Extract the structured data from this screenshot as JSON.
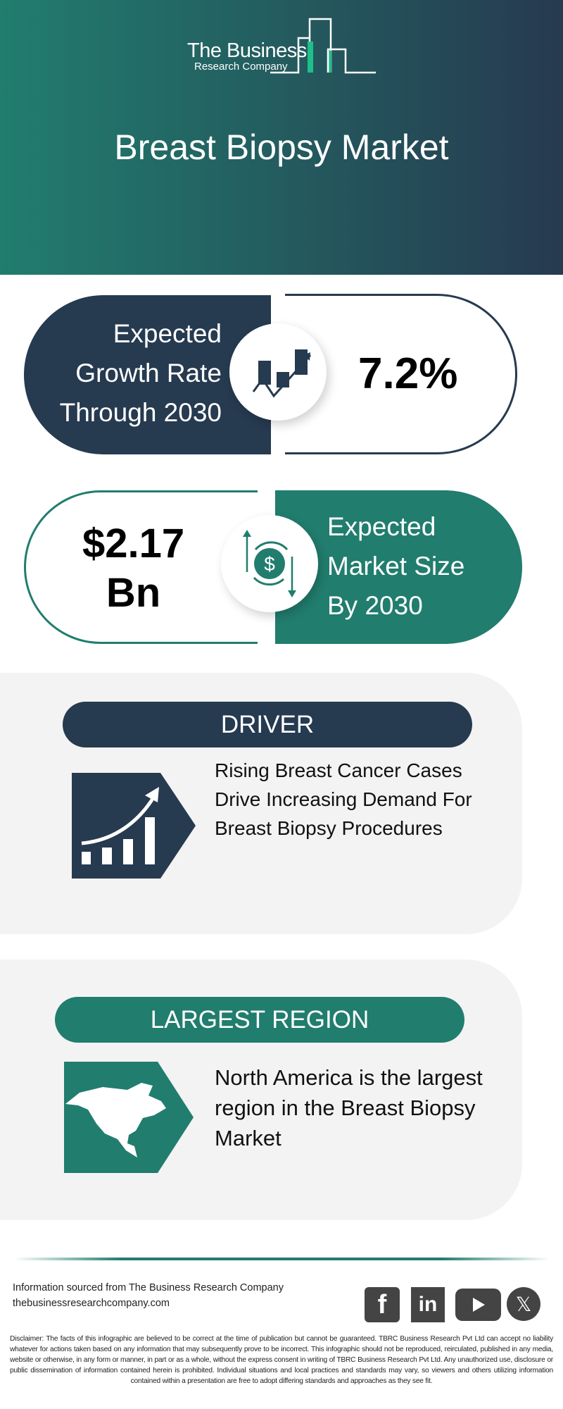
{
  "header": {
    "logo_line1": "The Business",
    "logo_line2": "Research Company",
    "title": "Breast Biopsy Market"
  },
  "growth": {
    "label_lines": [
      "Expected",
      "Growth Rate",
      "Through 2030"
    ],
    "value": "7.2%",
    "icon": "growth-chart-icon"
  },
  "market": {
    "value_line1": "$2.17",
    "value_line2": "Bn",
    "label_lines": [
      "Expected",
      "Market Size",
      "By 2030"
    ],
    "icon": "dollar-cycle-icon"
  },
  "driver": {
    "heading": "DRIVER",
    "text_lines": [
      "Rising Breast Cancer Cases",
      "Drive Increasing Demand For",
      "Breast Biopsy Procedures"
    ],
    "icon": "rising-bar-chart-icon"
  },
  "region": {
    "heading": "LARGEST REGION",
    "text_lines": [
      "North America is the largest",
      "region in the Breast Biopsy",
      "Market"
    ],
    "icon": "north-america-map-icon"
  },
  "footer": {
    "source": "Information sourced from The Business Research Company",
    "website": "thebusinessresearchcompany.com",
    "social": [
      "facebook",
      "linkedin",
      "youtube",
      "x"
    ],
    "disclaimer": "Disclaimer: The facts of this infographic are believed to be correct at the time of publication but cannot be guaranteed. TBRC Business Research Pvt Ltd can accept no liability whatever for actions taken based on any information that may subsequently prove to be incorrect. This infographic should not be reproduced, reirculated, published in any media, website or otherwise, in any form or manner, in part or as a whole, without the express consent in writing of TBRC Business Research Pvt Ltd. Any unauthorized use, disclosure or public dissemination of information contained herein is prohibited. Individual situations and local practices and standards may vary, so viewers and others utilizing information contained within a presentation are free to adopt differing standards and approaches as they see fit."
  },
  "colors": {
    "navy": "#263a50",
    "teal": "#217d6e",
    "panel": "#f3f3f3"
  }
}
